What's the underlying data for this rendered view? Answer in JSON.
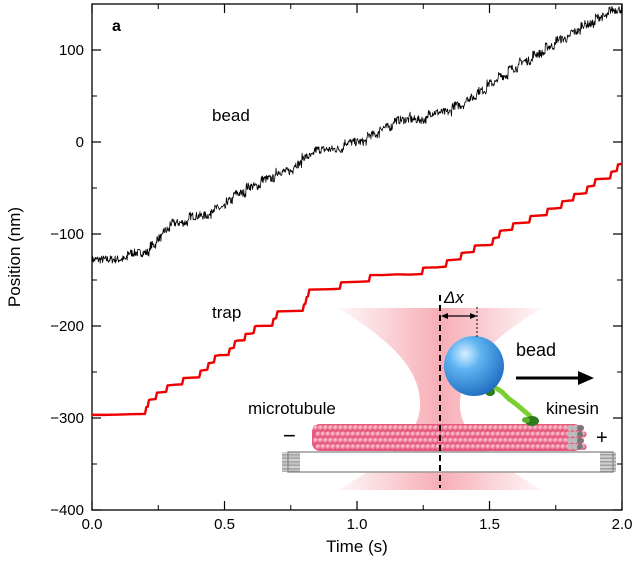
{
  "panel_label": "a",
  "chart_data": {
    "type": "line",
    "xlabel": "Time (s)",
    "ylabel": "Position (nm)",
    "xlim": [
      0,
      2.0
    ],
    "ylim": [
      -400,
      150
    ],
    "xticks": [
      0.0,
      0.5,
      1.0,
      1.5,
      2.0
    ],
    "xtick_labels": [
      "0.0",
      "0.5",
      "1.0",
      "1.5",
      "2.0"
    ],
    "yticks": [
      -400,
      -300,
      -200,
      -100,
      0,
      100
    ],
    "ytick_labels": [
      "−400",
      "−300",
      "−200",
      "−100",
      "0",
      "100"
    ],
    "grid": false,
    "series": [
      {
        "name": "bead",
        "color": "#000000",
        "style": "noisy staircase",
        "x": [
          0.0,
          0.1,
          0.2,
          0.25,
          0.3,
          0.35,
          0.4,
          0.5,
          0.55,
          0.6,
          0.65,
          0.7,
          0.75,
          0.8,
          0.85,
          0.9,
          1.0,
          1.05,
          1.1,
          1.15,
          1.2,
          1.25,
          1.3,
          1.35,
          1.4,
          1.45,
          1.5,
          1.55,
          1.6,
          1.7,
          1.75,
          1.8,
          1.85,
          1.9,
          1.95,
          2.0
        ],
        "y": [
          -127,
          -125,
          -122,
          -106,
          -90,
          -85,
          -82,
          -70,
          -55,
          -50,
          -42,
          -35,
          -30,
          -18,
          -10,
          -8,
          0,
          5,
          15,
          22,
          28,
          25,
          33,
          35,
          42,
          52,
          62,
          72,
          82,
          98,
          108,
          115,
          125,
          132,
          140,
          145
        ]
      },
      {
        "name": "trap",
        "color": "#ee0000",
        "style": "staircase",
        "x": [
          0.0,
          0.05,
          0.1,
          0.15,
          0.2,
          0.22,
          0.3,
          0.32,
          0.4,
          0.45,
          0.48,
          0.52,
          0.55,
          0.6,
          0.62,
          0.68,
          0.7,
          0.8,
          0.82,
          0.9,
          0.95,
          1.0,
          1.05,
          1.1,
          1.15,
          1.2,
          1.25,
          1.3,
          1.4,
          1.45,
          1.5,
          1.55,
          1.6,
          1.7,
          1.75,
          1.8,
          1.85,
          1.9,
          1.95,
          2.0
        ],
        "y": [
          -300,
          -300,
          -298,
          -295,
          -293,
          -280,
          -265,
          -262,
          -255,
          -240,
          -230,
          -228,
          -215,
          -210,
          -200,
          -198,
          -185,
          -180,
          -163,
          -160,
          -155,
          -152,
          -148,
          -148,
          -143,
          -145,
          -140,
          -138,
          -123,
          -115,
          -112,
          -97,
          -90,
          -78,
          -73,
          -62,
          -57,
          -43,
          -38,
          -22
        ]
      }
    ],
    "annotations": {
      "bead_label": "bead",
      "trap_label": "trap"
    },
    "inset": {
      "delta_x_label": "Δx",
      "bead_label": "bead",
      "kinesin_label": "kinesin",
      "microtubule_label": "microtubule",
      "minus_label": "−",
      "plus_label": "+",
      "colors": {
        "laser": "#f06a7a",
        "bead": "#3a8fe0",
        "microtubule": "#f0607f",
        "kinesin": "#7bd030"
      }
    }
  }
}
